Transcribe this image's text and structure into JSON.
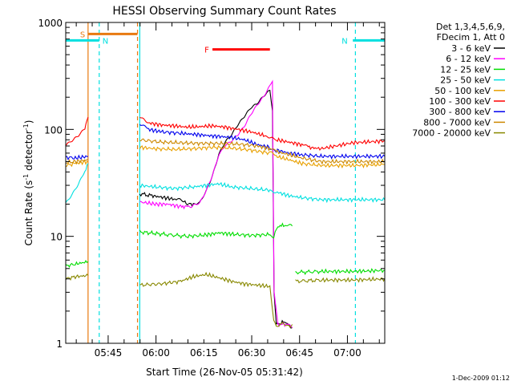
{
  "chart_data": {
    "type": "line",
    "title": "HESSI Observing Summary Count Rates",
    "xlabel": "Start Time (26-Nov-05 05:31:42)",
    "ylabel_main": "Count Rate (s",
    "ylabel_sup1": "-1",
    "ylabel_mid": " detector",
    "ylabel_sup2": "-1",
    "ylabel_end": ")",
    "yscale": "log",
    "ylim": [
      1,
      1000
    ],
    "xlim": [
      0,
      100
    ],
    "x_tick_labels": [
      "05:45",
      "06:00",
      "06:15",
      "06:30",
      "06:45",
      "07:00"
    ],
    "x_tick_minutes": [
      13.3,
      28.3,
      43.3,
      58.3,
      73.3,
      88.3
    ],
    "y_tick_labels": [
      "1",
      "10",
      "100",
      "1000"
    ],
    "y_tick_values": [
      1,
      10,
      100,
      1000
    ],
    "legend_header": [
      "Det 1,3,4,5,6,9,",
      "FDecim 1, Att 0"
    ],
    "legend_position": "right",
    "footer": "1-Dec-2009 01:12",
    "flags": [
      {
        "label": "S",
        "color": "#e87a10",
        "x0": 7.0,
        "x1": 22.5,
        "y": 780
      },
      {
        "label": "N",
        "color": "#00e0e0",
        "x0": 0,
        "x1": 10.5,
        "y": 680
      },
      {
        "label": "N",
        "color": "#00e0e0",
        "x0": 90.0,
        "x1": 100,
        "y": 680
      },
      {
        "label": "F",
        "color": "#ff0000",
        "x0": 46.0,
        "x1": 64.0,
        "y": 560
      }
    ],
    "vlines": [
      {
        "x": 7.0,
        "color": "#e87a10",
        "dash": false
      },
      {
        "x": 10.5,
        "color": "#00e0e0",
        "dash": true
      },
      {
        "x": 22.5,
        "color": "#e87a10",
        "dash": true
      },
      {
        "x": 23.2,
        "color": "#00e0e0",
        "dash": false
      },
      {
        "x": 90.8,
        "color": "#00e0e0",
        "dash": true
      }
    ],
    "series": [
      {
        "name": "3 - 6 keV",
        "color": "#000000",
        "segments": [
          {
            "x": [
              23.2,
              27,
              31,
              35,
              37,
              38.5
            ],
            "y": [
              25,
              24,
              23,
              22,
              21,
              20
            ]
          },
          {
            "x": [
              38.5,
              40,
              42,
              44,
              46,
              48,
              50,
              52,
              54,
              56,
              58,
              60,
              62,
              64,
              64.8,
              65.3,
              66
            ],
            "y": [
              20,
              20,
              21,
              27,
              38,
              60,
              78,
              90,
              110,
              130,
              155,
              170,
              200,
              230,
              150,
              3,
              1.5
            ]
          },
          {
            "x": [
              66,
              69,
              71
            ],
            "y": [
              1.5,
              1.6,
              1.4
            ]
          }
        ]
      },
      {
        "name": "6 - 12 keV",
        "color": "#ff00ff",
        "segments": [
          {
            "x": [
              23.2,
              28,
              32,
              36,
              38.5,
              40,
              42,
              44,
              46,
              48,
              50,
              52,
              54,
              56,
              58,
              60,
              62,
              64,
              64.8,
              65.3,
              66.5
            ],
            "y": [
              21,
              20,
              20,
              19,
              19,
              19,
              20,
              26,
              37,
              58,
              72,
              80,
              92,
              110,
              140,
              170,
              200,
              250,
              280,
              3,
              1.5
            ]
          },
          {
            "x": [
              66.5,
              69,
              71
            ],
            "y": [
              1.5,
              1.5,
              1.4
            ]
          }
        ]
      },
      {
        "name": "12 - 25 keV",
        "color": "#00dd00",
        "segments": [
          {
            "x": [
              0,
              3,
              7
            ],
            "y": [
              5.3,
              5.5,
              5.8
            ]
          },
          {
            "x": [
              23.2,
              30,
              38,
              44,
              48,
              52,
              58,
              64,
              65.2,
              66.5,
              69,
              71
            ],
            "y": [
              11,
              10.5,
              10,
              10.3,
              10.8,
              10.5,
              10.2,
              10.4,
              10,
              12.5,
              12.7,
              12.5
            ]
          },
          {
            "x": [
              72,
              80,
              90,
              100
            ],
            "y": [
              4.6,
              4.7,
              4.7,
              4.8
            ]
          }
        ]
      },
      {
        "name": "25 - 50 keV",
        "color": "#00e0e0",
        "segments": [
          {
            "x": [
              0,
              2,
              4,
              6,
              7
            ],
            "y": [
              20,
              24,
              30,
              40,
              48
            ]
          },
          {
            "x": [
              23.2,
              28,
              34,
              40,
              44,
              48,
              52,
              58,
              64,
              66,
              70,
              74,
              80,
              90,
              100
            ],
            "y": [
              30,
              29,
              28,
              29,
              30,
              31,
              29,
              28,
              27,
              26,
              24,
              23,
              22,
              22,
              22
            ]
          }
        ]
      },
      {
        "name": "50 - 100 keV",
        "color": "#e8a000",
        "segments": [
          {
            "x": [
              0,
              3,
              7
            ],
            "y": [
              46,
              48,
              50
            ]
          },
          {
            "x": [
              23.2,
              28,
              34,
              40,
              46,
              52,
              58,
              64,
              66,
              70,
              74,
              80,
              90,
              100
            ],
            "y": [
              68,
              66,
              65,
              66,
              68,
              67,
              64,
              60,
              56,
              52,
              48,
              46,
              46,
              47
            ]
          }
        ]
      },
      {
        "name": "100 - 300 keV",
        "color": "#ff0000",
        "segments": [
          {
            "x": [
              0,
              2,
              4,
              6,
              7
            ],
            "y": [
              72,
              80,
              90,
              105,
              130
            ]
          },
          {
            "x": [
              23.2,
              26,
              30,
              34,
              38,
              42,
              46,
              50,
              54,
              58,
              62,
              64,
              66,
              70,
              74,
              76,
              80,
              90,
              100
            ],
            "y": [
              130,
              115,
              110,
              108,
              105,
              106,
              108,
              105,
              100,
              95,
              88,
              85,
              80,
              76,
              72,
              68,
              66,
              75,
              78
            ]
          }
        ]
      },
      {
        "name": "300 - 800 keV",
        "color": "#0000ee",
        "segments": [
          {
            "x": [
              0,
              3,
              7
            ],
            "y": [
              55,
              54,
              56
            ]
          },
          {
            "x": [
              23.2,
              26,
              30,
              36,
              40,
              44,
              48,
              52,
              56,
              60,
              64,
              66,
              70,
              74,
              80,
              90,
              100
            ],
            "y": [
              110,
              100,
              95,
              92,
              90,
              88,
              86,
              84,
              80,
              72,
              68,
              64,
              60,
              58,
              56,
              56,
              56
            ]
          }
        ]
      },
      {
        "name": "800 - 7000 keV",
        "color": "#cc8800",
        "segments": [
          {
            "x": [
              0,
              3,
              7
            ],
            "y": [
              49,
              50,
              52
            ]
          },
          {
            "x": [
              23.2,
              30,
              36,
              42,
              48,
              54,
              60,
              64,
              66,
              70,
              74,
              80,
              90,
              100
            ],
            "y": [
              80,
              76,
              75,
              74,
              74,
              73,
              70,
              66,
              62,
              58,
              54,
              50,
              50,
              50
            ]
          }
        ]
      },
      {
        "name": "7000 - 20000 keV",
        "color": "#888800",
        "segments": [
          {
            "x": [
              0,
              3,
              7
            ],
            "y": [
              4.0,
              4.2,
              4.3
            ]
          },
          {
            "x": [
              23.2,
              30,
              36,
              40,
              44,
              48,
              52,
              56,
              60,
              64,
              65.2,
              66,
              68,
              70,
              71
            ],
            "y": [
              3.5,
              3.6,
              3.8,
              4.2,
              4.4,
              4.1,
              3.8,
              3.6,
              3.5,
              3.4,
              1.6,
              1.4,
              1.5,
              1.4,
              1.5
            ]
          },
          {
            "x": [
              72,
              80,
              90,
              100
            ],
            "y": [
              3.8,
              3.9,
              3.9,
              4.0
            ]
          }
        ]
      }
    ]
  }
}
